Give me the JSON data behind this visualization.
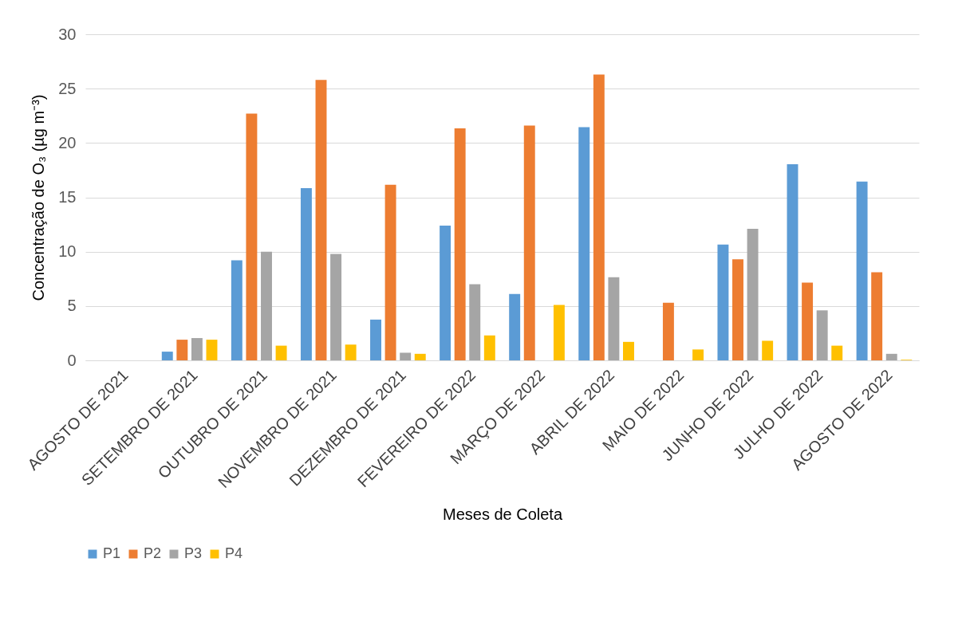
{
  "chart_data": {
    "type": "bar",
    "xlabel": "Meses de Coleta",
    "ylabel": "Concentração de O₃ (µg m⁻³)",
    "categories": [
      "AGOSTO DE 2021",
      "SETEMBRO DE 2021",
      "OUTUBRO DE 2021",
      "NOVEMBRO DE 2021",
      "DEZEMBRO DE 2021",
      "FEVEREIRO DE 2022",
      "MARÇO DE 2022",
      "ABRIL DE 2022",
      "MAIO DE 2022",
      "JUNHO DE 2022",
      "JULHO DE 2022",
      "AGOSTO DE 2022"
    ],
    "series": [
      {
        "name": "P1",
        "color": "#5b9bd5",
        "values": [
          0,
          0.8,
          9.2,
          15.85,
          3.75,
          12.4,
          6.1,
          21.45,
          0,
          10.65,
          18.05,
          16.45
        ]
      },
      {
        "name": "P2",
        "color": "#ed7d31",
        "values": [
          0,
          1.9,
          22.7,
          25.8,
          16.15,
          21.35,
          21.6,
          26.3,
          5.3,
          9.3,
          7.15,
          8.1
        ]
      },
      {
        "name": "P3",
        "color": "#a5a5a5",
        "values": [
          0,
          2.05,
          10.0,
          9.8,
          0.7,
          7.0,
          0,
          7.65,
          0,
          12.1,
          4.6,
          0.6
        ]
      },
      {
        "name": "P4",
        "color": "#ffc000",
        "values": [
          0,
          1.9,
          1.35,
          1.45,
          0.6,
          2.3,
          5.1,
          1.7,
          1.0,
          1.8,
          1.35,
          0.05
        ]
      }
    ],
    "ylim": [
      0,
      30
    ],
    "yticks": [
      0,
      5,
      10,
      15,
      20,
      25,
      30
    ],
    "grid": "y",
    "legend": "bottom"
  }
}
